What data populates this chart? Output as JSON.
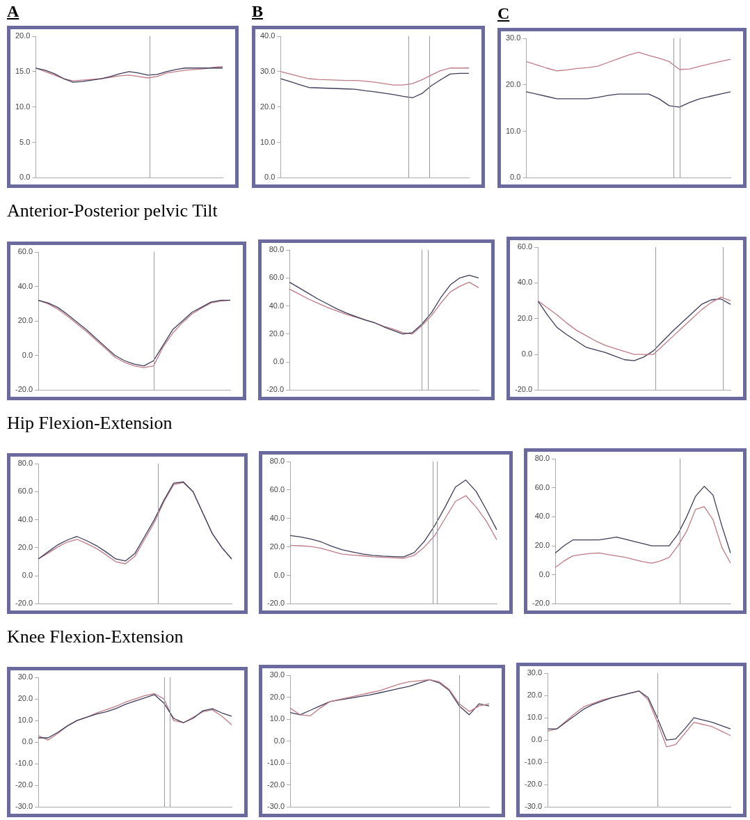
{
  "chart_data": [
    {
      "type": "line",
      "title": "A",
      "annotations": [
        "Anterior-Posterior pelvic Tilt"
      ],
      "categories": [
        null,
        null,
        null,
        null,
        null,
        null,
        null,
        null,
        null,
        null,
        null,
        null,
        null,
        null,
        null,
        null,
        null,
        null,
        null,
        null,
        null
      ],
      "ylim": [
        0,
        20
      ],
      "yticks": [
        {
          "value": 0,
          "label": "0.0"
        },
        {
          "value": 5,
          "label": "5.0"
        },
        {
          "value": 10,
          "label": "10.0"
        },
        {
          "value": 15,
          "label": "15.0"
        },
        {
          "value": 20,
          "label": "20.0"
        }
      ],
      "tick_labels": "y",
      "series": [
        {
          "color": "#3c3c5a",
          "values": [
            15.5,
            15.2,
            14.7,
            14,
            13.5,
            13.6,
            13.8,
            14,
            14.3,
            14.7,
            15,
            14.8,
            14.5,
            14.6,
            15,
            15.3,
            15.5,
            15.5,
            15.5,
            15.5,
            15.5
          ]
        },
        {
          "color": "#c07a85",
          "values": [
            15.5,
            15,
            14.5,
            14,
            13.7,
            13.8,
            13.9,
            14,
            14.2,
            14.4,
            14.5,
            14.3,
            14.1,
            14.3,
            14.8,
            15,
            15.2,
            15.3,
            15.4,
            15.6,
            15.7
          ]
        }
      ]
    },
    {
      "type": "line",
      "title": "B",
      "categories": [
        null,
        null,
        null,
        null,
        null,
        null,
        null,
        null,
        null,
        null,
        null,
        null,
        null,
        null,
        null,
        null,
        null,
        null,
        null,
        null,
        null
      ],
      "ylim": [
        0,
        40
      ],
      "yticks": [
        {
          "value": 0,
          "label": "0.0"
        },
        {
          "value": 10,
          "label": "10.0"
        },
        {
          "value": 20,
          "label": "20.0"
        },
        {
          "value": 30,
          "label": "30.0"
        },
        {
          "value": 40,
          "label": "40.0"
        }
      ],
      "tick_labels": "y",
      "series": [
        {
          "color": "#c07a85",
          "values": [
            30,
            29.3,
            28.6,
            28,
            27.8,
            27.7,
            27.6,
            27.5,
            27.5,
            27.3,
            27,
            26.6,
            26.2,
            26.2,
            26.6,
            27.7,
            29,
            30.3,
            31,
            31,
            31
          ]
        },
        {
          "color": "#3c3c5a",
          "values": [
            28,
            27.2,
            26.3,
            25.5,
            25.4,
            25.3,
            25.2,
            25.1,
            25,
            24.6,
            24.3,
            23.9,
            23.5,
            23,
            22.6,
            23.8,
            26,
            27.7,
            29.3,
            29.5,
            29.5
          ]
        }
      ]
    },
    {
      "type": "line",
      "title": "C",
      "categories": [
        null,
        null,
        null,
        null,
        null,
        null,
        null,
        null,
        null,
        null,
        null,
        null,
        null,
        null,
        null,
        null,
        null,
        null,
        null,
        null,
        null
      ],
      "ylim": [
        0,
        30
      ],
      "yticks": [
        {
          "value": 0,
          "label": "0.0"
        },
        {
          "value": 10,
          "label": "10.0"
        },
        {
          "value": 20,
          "label": "20.0"
        },
        {
          "value": 30,
          "label": "30.0"
        }
      ],
      "tick_labels": "y",
      "series": [
        {
          "color": "#c07a85",
          "values": [
            25,
            24.3,
            23.6,
            23,
            23.2,
            23.5,
            23.7,
            24,
            24.8,
            25.6,
            26.4,
            27,
            26.3,
            25.7,
            25,
            23.3,
            23.4,
            24,
            24.5,
            25,
            25.5
          ]
        },
        {
          "color": "#3c3c5a",
          "values": [
            18.5,
            18,
            17.5,
            17,
            17,
            17,
            17,
            17.3,
            17.7,
            18,
            18,
            18,
            18,
            17,
            15.5,
            15.2,
            16.2,
            17,
            17.5,
            18,
            18.5
          ]
        }
      ]
    },
    {
      "type": "line",
      "annotations": [
        "Hip Flexion-Extension"
      ],
      "categories": [
        null,
        null,
        null,
        null,
        null,
        null,
        null,
        null,
        null,
        null,
        null,
        null,
        null,
        null,
        null,
        null,
        null,
        null,
        null,
        null,
        null
      ],
      "ylim": [
        -20,
        60
      ],
      "yticks": [
        {
          "value": -20,
          "label": "-20.0"
        },
        {
          "value": 0,
          "label": "0.0"
        },
        {
          "value": 20,
          "label": "20.0"
        },
        {
          "value": 40,
          "label": "40.0"
        },
        {
          "value": 60,
          "label": "60.0"
        }
      ],
      "tick_labels": "y",
      "series": [
        {
          "color": "#3c3c5a",
          "values": [
            32,
            30.5,
            28,
            24,
            19.5,
            15,
            10,
            5,
            0,
            -3,
            -5,
            -6,
            -3,
            6,
            15,
            20,
            25,
            28,
            31,
            32,
            32
          ]
        },
        {
          "color": "#c07a85",
          "values": [
            32,
            30,
            27,
            23,
            18.5,
            14,
            9,
            4,
            -1,
            -4,
            -6,
            -7,
            -6,
            5,
            13,
            19,
            24,
            27.5,
            30.5,
            31.5,
            32
          ]
        }
      ]
    },
    {
      "type": "line",
      "categories": [
        null,
        null,
        null,
        null,
        null,
        null,
        null,
        null,
        null,
        null,
        null,
        null,
        null,
        null,
        null,
        null,
        null,
        null,
        null,
        null,
        null
      ],
      "ylim": [
        -20,
        80
      ],
      "yticks": [
        {
          "value": -20,
          "label": "-20.0"
        },
        {
          "value": 0,
          "label": "0.0"
        },
        {
          "value": 20,
          "label": "20.0"
        },
        {
          "value": 40,
          "label": "40.0"
        },
        {
          "value": 60,
          "label": "60.0"
        },
        {
          "value": 80,
          "label": "80.0"
        }
      ],
      "tick_labels": "y",
      "series": [
        {
          "color": "#3c3c5a",
          "values": [
            57,
            53,
            49,
            45,
            41.5,
            38,
            35,
            32.5,
            30,
            28,
            25,
            22.5,
            20,
            21,
            27,
            35,
            46,
            55,
            60,
            62,
            60
          ]
        },
        {
          "color": "#c07a85",
          "values": [
            52,
            48.5,
            45,
            42,
            39,
            36.5,
            34,
            32,
            30,
            28,
            25.5,
            23.5,
            21,
            20,
            26,
            33,
            42,
            50,
            54,
            57,
            53
          ]
        }
      ]
    },
    {
      "type": "line",
      "categories": [
        null,
        null,
        null,
        null,
        null,
        null,
        null,
        null,
        null,
        null,
        null,
        null,
        null,
        null,
        null,
        null,
        null,
        null,
        null,
        null,
        null
      ],
      "ylim": [
        -20,
        60
      ],
      "yticks": [
        {
          "value": -20,
          "label": "-20.0"
        },
        {
          "value": 0,
          "label": "0.0"
        },
        {
          "value": 20,
          "label": "20.0"
        },
        {
          "value": 40,
          "label": "40.0"
        },
        {
          "value": 60,
          "label": "60.0"
        }
      ],
      "tick_labels": "y",
      "series": [
        {
          "color": "#c07a85",
          "values": [
            30,
            26,
            22,
            17.5,
            13.5,
            10.5,
            7.5,
            5,
            3.3,
            1.6,
            0,
            0,
            0,
            5,
            10,
            15,
            20,
            25,
            29,
            32,
            30
          ]
        },
        {
          "color": "#3c3c5a",
          "values": [
            30,
            22,
            15,
            11,
            7.5,
            4,
            2.5,
            1,
            -1,
            -3,
            -3.5,
            -1.5,
            2,
            7.5,
            13,
            18,
            23,
            28,
            30.5,
            31,
            28
          ]
        }
      ]
    },
    {
      "type": "line",
      "annotations": [
        "Knee Flexion-Extension"
      ],
      "categories": [
        null,
        null,
        null,
        null,
        null,
        null,
        null,
        null,
        null,
        null,
        null,
        null,
        null,
        null,
        null,
        null,
        null,
        null,
        null,
        null,
        null
      ],
      "ylim": [
        -20,
        80
      ],
      "yticks": [
        {
          "value": -20,
          "label": "-20.0"
        },
        {
          "value": 0,
          "label": "0.0"
        },
        {
          "value": 20,
          "label": "20.0"
        },
        {
          "value": 40,
          "label": "40.0"
        },
        {
          "value": 60,
          "label": "60.0"
        },
        {
          "value": 80,
          "label": "80.0"
        }
      ],
      "tick_labels": "y",
      "series": [
        {
          "color": "#3c3c5a",
          "values": [
            12,
            17,
            22,
            25.5,
            28,
            25,
            21.5,
            17,
            12,
            10.5,
            16,
            28,
            40,
            54,
            66,
            67,
            60,
            45,
            30,
            20,
            12
          ]
        },
        {
          "color": "#c07a85",
          "values": [
            12,
            16,
            20.5,
            24,
            26,
            23,
            19.5,
            15,
            10,
            8.5,
            14,
            26,
            38,
            53,
            65,
            66.5,
            60,
            45,
            30,
            20,
            12
          ]
        }
      ]
    },
    {
      "type": "line",
      "categories": [
        null,
        null,
        null,
        null,
        null,
        null,
        null,
        null,
        null,
        null,
        null,
        null,
        null,
        null,
        null,
        null,
        null,
        null,
        null,
        null,
        null
      ],
      "ylim": [
        -20,
        80
      ],
      "yticks": [
        {
          "value": -20,
          "label": "-20.0"
        },
        {
          "value": 0,
          "label": "0.0"
        },
        {
          "value": 20,
          "label": "20.0"
        },
        {
          "value": 40,
          "label": "40.0"
        },
        {
          "value": 60,
          "label": "60.0"
        },
        {
          "value": 80,
          "label": "80.0"
        }
      ],
      "tick_labels": "y",
      "series": [
        {
          "color": "#3c3c5a",
          "values": [
            28,
            27,
            25.5,
            23.5,
            20.5,
            18,
            16.5,
            15,
            14,
            13.5,
            13.2,
            13,
            16,
            24,
            35,
            48,
            62,
            67,
            59,
            46,
            32
          ]
        },
        {
          "color": "#c07a85",
          "values": [
            21,
            20.8,
            20.3,
            19,
            17,
            15,
            14.3,
            13.7,
            13,
            12.7,
            12.3,
            12,
            14,
            20,
            28,
            40,
            52,
            56,
            48,
            38,
            25
          ]
        }
      ]
    },
    {
      "type": "line",
      "categories": [
        null,
        null,
        null,
        null,
        null,
        null,
        null,
        null,
        null,
        null,
        null,
        null,
        null,
        null,
        null,
        null,
        null,
        null,
        null,
        null,
        null
      ],
      "ylim": [
        -20,
        80
      ],
      "yticks": [
        {
          "value": -20,
          "label": "-20.0"
        },
        {
          "value": 0,
          "label": "0.0"
        },
        {
          "value": 20,
          "label": "20.0"
        },
        {
          "value": 40,
          "label": "40.0"
        },
        {
          "value": 60,
          "label": "60.0"
        },
        {
          "value": 80,
          "label": "80.0"
        }
      ],
      "tick_labels": "y",
      "series": [
        {
          "color": "#3c3c5a",
          "values": [
            15,
            20,
            24,
            24,
            24,
            24,
            25,
            26,
            24.5,
            23,
            21.5,
            20,
            20,
            20,
            28,
            40,
            54,
            61,
            55,
            34,
            15
          ]
        },
        {
          "color": "#c07a85",
          "values": [
            5,
            9.5,
            13,
            14,
            14.7,
            15,
            14,
            13,
            12,
            10.5,
            9,
            8,
            9.5,
            12,
            20,
            30,
            45,
            47,
            38,
            19,
            8
          ]
        }
      ]
    },
    {
      "type": "line",
      "categories": [
        null,
        null,
        null,
        null,
        null,
        null,
        null,
        null,
        null,
        null,
        null,
        null,
        null,
        null,
        null,
        null,
        null,
        null,
        null,
        null,
        null
      ],
      "ylim": [
        -30,
        30
      ],
      "yticks": [
        {
          "value": -30,
          "label": "-30.0"
        },
        {
          "value": -20,
          "label": "-20.0"
        },
        {
          "value": -10,
          "label": "-10.0"
        },
        {
          "value": 0,
          "label": "0.0"
        },
        {
          "value": 10,
          "label": "10.0"
        },
        {
          "value": 20,
          "label": "20.0"
        },
        {
          "value": 30,
          "label": "30.0"
        }
      ],
      "tick_labels": "y",
      "series": [
        {
          "color": "#3c3c5a",
          "values": [
            2,
            2,
            4.5,
            7.5,
            10,
            11.5,
            13,
            14,
            15.5,
            17.5,
            19,
            20.5,
            22,
            18,
            11,
            9,
            11,
            14.5,
            15.5,
            13.5,
            12
          ]
        },
        {
          "color": "#c07a85",
          "values": [
            3,
            1,
            4,
            7.5,
            10,
            11.5,
            13.5,
            15,
            16.5,
            18.5,
            20,
            21.5,
            22.5,
            20,
            10,
            9,
            11.5,
            14,
            15,
            12,
            8
          ]
        }
      ]
    },
    {
      "type": "line",
      "categories": [
        null,
        null,
        null,
        null,
        null,
        null,
        null,
        null,
        null,
        null,
        null,
        null,
        null,
        null,
        null,
        null,
        null,
        null,
        null,
        null,
        null
      ],
      "ylim": [
        -30,
        30
      ],
      "yticks": [
        {
          "value": -30,
          "label": "-30.0"
        },
        {
          "value": -20,
          "label": "-20.0"
        },
        {
          "value": -10,
          "label": "-10.0"
        },
        {
          "value": 0,
          "label": "0.0"
        },
        {
          "value": 10,
          "label": "10.0"
        },
        {
          "value": 20,
          "label": "20.0"
        },
        {
          "value": 30,
          "label": "30.0"
        }
      ],
      "tick_labels": "y",
      "series": [
        {
          "color": "#c07a85",
          "values": [
            15,
            12,
            11.5,
            15,
            18,
            19,
            20,
            21,
            22,
            23,
            24.5,
            26,
            27,
            27.5,
            28,
            27,
            23.5,
            17,
            13.5,
            16,
            17
          ]
        },
        {
          "color": "#3c3c5a",
          "values": [
            13,
            12,
            14,
            16,
            18,
            18.8,
            19.5,
            20.3,
            21,
            22,
            23,
            24,
            25,
            26.5,
            28,
            26.5,
            23,
            16,
            12,
            17,
            16
          ]
        }
      ]
    },
    {
      "type": "line",
      "categories": [
        null,
        null,
        null,
        null,
        null,
        null,
        null,
        null,
        null,
        null,
        null,
        null,
        null,
        null,
        null,
        null,
        null,
        null,
        null,
        null,
        null
      ],
      "ylim": [
        -30,
        30
      ],
      "yticks": [
        {
          "value": -30,
          "label": "-30.0"
        },
        {
          "value": -20,
          "label": "-20.0"
        },
        {
          "value": -10,
          "label": "-10.0"
        },
        {
          "value": 0,
          "label": "0.0"
        },
        {
          "value": 10,
          "label": "10.0"
        },
        {
          "value": 20,
          "label": "20.0"
        },
        {
          "value": 30,
          "label": "30.0"
        }
      ],
      "tick_labels": "y",
      "series": [
        {
          "color": "#3c3c5a",
          "values": [
            5,
            5,
            8,
            11,
            14,
            16,
            17.5,
            19,
            20,
            21,
            22,
            19,
            10,
            0,
            0.5,
            5,
            10,
            9,
            8,
            6.5,
            5
          ]
        },
        {
          "color": "#c07a85",
          "values": [
            4,
            5,
            8.5,
            12,
            15,
            16.5,
            18,
            19,
            20,
            21,
            22,
            18,
            8,
            -3,
            -2,
            3,
            8,
            7,
            6,
            4,
            2
          ]
        }
      ]
    }
  ]
}
